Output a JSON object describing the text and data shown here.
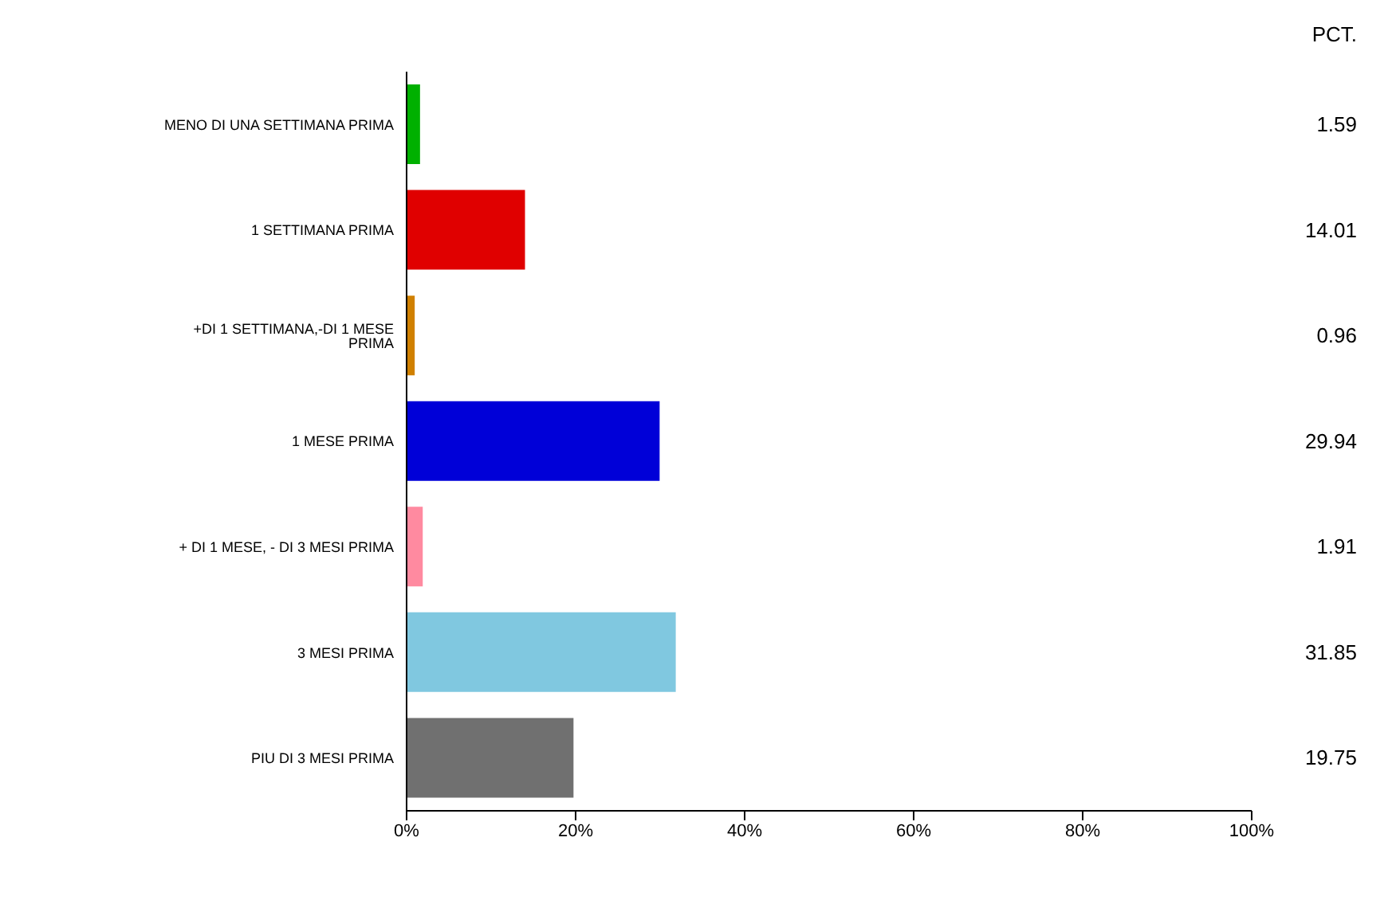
{
  "chart_data": {
    "type": "bar",
    "orientation": "horizontal",
    "categories": [
      "MENO DI UNA SETTIMANA PRIMA",
      "1 SETTIMANA PRIMA",
      "+DI 1 SETTIMANA,-DI 1 MESE PRIMA",
      "1 MESE PRIMA",
      "+ DI 1 MESE, - DI 3 MESI PRIMA",
      "3 MESI PRIMA",
      "PIU DI 3 MESI PRIMA"
    ],
    "values": [
      1.59,
      14.01,
      0.96,
      29.94,
      1.91,
      31.85,
      19.75
    ],
    "colors": [
      "#00b000",
      "#e00000",
      "#d08000",
      "#0000d8",
      "#ff8aa0",
      "#80c8e0",
      "#707070"
    ],
    "xlim": [
      0,
      100
    ],
    "xticks": [
      {
        "value": 0,
        "label": "0%"
      },
      {
        "value": 20,
        "label": "20%"
      },
      {
        "value": 40,
        "label": "40%"
      },
      {
        "value": 60,
        "label": "60%"
      },
      {
        "value": 80,
        "label": "80%"
      },
      {
        "value": 100,
        "label": "100%"
      }
    ],
    "data_labels": true,
    "annotations": [
      "PCT."
    ]
  }
}
